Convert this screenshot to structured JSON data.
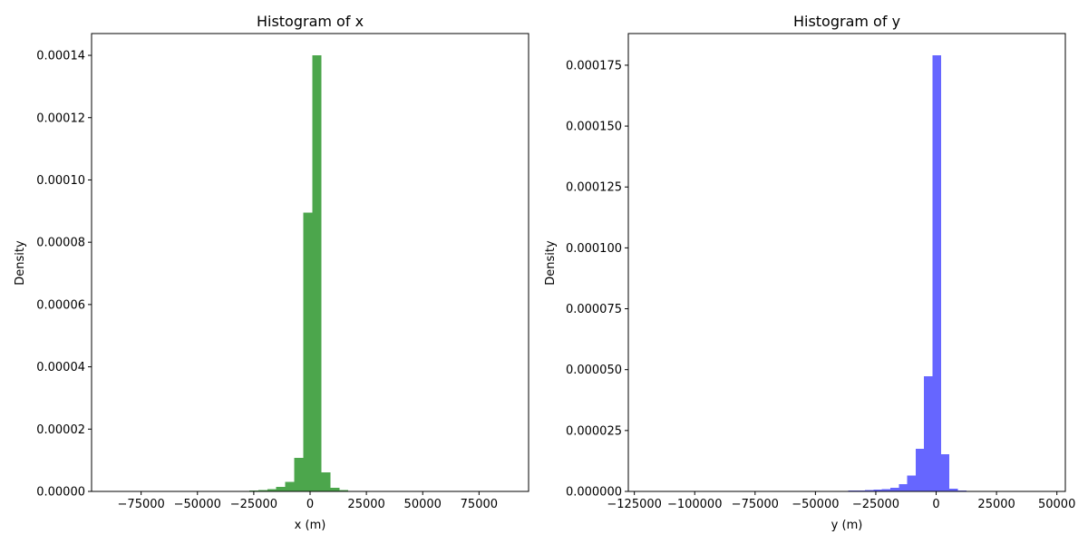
{
  "chart_data": [
    {
      "type": "bar",
      "title": "Histogram of x",
      "xlabel": "x (m)",
      "ylabel": "Density",
      "xlim": [
        -97000,
        97000
      ],
      "ylim": [
        0,
        0.000147
      ],
      "xticks": [
        -75000,
        -50000,
        -25000,
        0,
        25000,
        50000,
        75000
      ],
      "xtick_labels": [
        "−75000",
        "−50000",
        "−25000",
        "0",
        "25000",
        "50000",
        "75000"
      ],
      "yticks": [
        0,
        2e-05,
        4e-05,
        6e-05,
        8e-05,
        0.0001,
        0.00012,
        0.00014
      ],
      "ytick_labels": [
        "0.00000",
        "0.00002",
        "0.00004",
        "0.00006",
        "0.00008",
        "0.00010",
        "0.00012",
        "0.00014"
      ],
      "grid": false,
      "color": "#4ca64c",
      "bin_edges": [
        -35000,
        -31000,
        -27000,
        -23000,
        -19000,
        -15000,
        -11000,
        -7000,
        -3000,
        1000,
        5000,
        9000,
        13000,
        17000,
        21000,
        25000
      ],
      "values": [
        2e-07,
        2e-07,
        3e-07,
        5e-07,
        7e-07,
        1.4e-06,
        3e-06,
        1.07e-05,
        8.95e-05,
        0.00014,
        6.1e-06,
        1.1e-06,
        4e-07,
        2e-07,
        1e-07
      ]
    },
    {
      "type": "bar",
      "title": "Histogram of y",
      "xlabel": "y (m)",
      "ylabel": "Density",
      "xlim": [
        -127500,
        53500
      ],
      "ylim": [
        0,
        0.000188
      ],
      "xticks": [
        -125000,
        -100000,
        -75000,
        -50000,
        -25000,
        0,
        25000,
        50000
      ],
      "xtick_labels": [
        "−125000",
        "−100000",
        "−75000",
        "−50000",
        "−25000",
        "0",
        "25000",
        "50000"
      ],
      "yticks": [
        0,
        2.5e-05,
        5e-05,
        7.5e-05,
        0.0001,
        0.000125,
        0.00015,
        0.000175
      ],
      "ytick_labels": [
        "0.000000",
        "0.000025",
        "0.000050",
        "0.000075",
        "0.000100",
        "0.000125",
        "0.000150",
        "0.000175"
      ],
      "grid": false,
      "color": "#6666ff",
      "bin_edges": [
        -47000,
        -43500,
        -40000,
        -36500,
        -33000,
        -29500,
        -26000,
        -22500,
        -19000,
        -15500,
        -12000,
        -8500,
        -5000,
        -1500,
        2000,
        5500,
        9000,
        12500,
        16000
      ],
      "values": [
        1e-07,
        2e-07,
        2e-07,
        3e-07,
        4e-07,
        5e-07,
        8e-07,
        1e-06,
        1.5e-06,
        3e-06,
        6.5e-06,
        1.75e-05,
        4.72e-05,
        0.000179,
        1.52e-05,
        1.1e-06,
        4e-07,
        2e-07
      ]
    }
  ]
}
